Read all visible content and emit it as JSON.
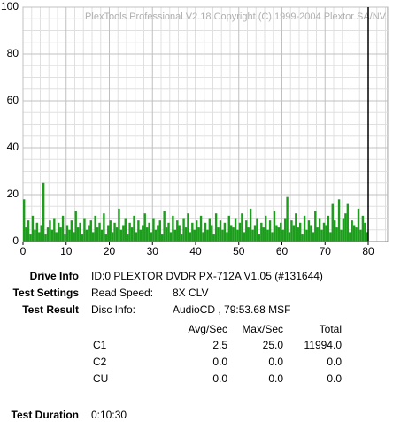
{
  "chart_data": {
    "type": "bar",
    "watermark": "PlexTools Professional V2.18 Copyright (C) 1999-2004 Plextor SA/NV",
    "xlim": [
      0,
      84.5
    ],
    "ylim": [
      0,
      100
    ],
    "xticks": [
      0,
      10,
      20,
      30,
      40,
      50,
      60,
      70,
      80
    ],
    "yticks": [
      0,
      20,
      40,
      60,
      80,
      100
    ],
    "minor_xticks": [
      2,
      4,
      6,
      8,
      12,
      14,
      16,
      18,
      22,
      24,
      26,
      28,
      32,
      34,
      36,
      38,
      42,
      44,
      46,
      48,
      52,
      54,
      56,
      58,
      62,
      64,
      66,
      68,
      72,
      74,
      76,
      78,
      82,
      84
    ],
    "minor_yticks": [
      5,
      10,
      15,
      25,
      30,
      35,
      45,
      50,
      55,
      65,
      70,
      75,
      85,
      90,
      95
    ],
    "grid": true,
    "color": "#1c9e1c",
    "end_line": 80,
    "x": [
      0,
      0.5,
      1,
      1.5,
      2,
      2.5,
      3,
      3.5,
      4,
      4.5,
      5,
      5.5,
      6,
      6.5,
      7,
      7.5,
      8,
      8.5,
      9,
      9.5,
      10,
      10.5,
      11,
      11.5,
      12,
      12.5,
      13,
      13.5,
      14,
      14.5,
      15,
      15.5,
      16,
      16.5,
      17,
      17.5,
      18,
      18.5,
      19,
      19.5,
      20,
      20.5,
      21,
      21.5,
      22,
      22.5,
      23,
      23.5,
      24,
      24.5,
      25,
      25.5,
      26,
      26.5,
      27,
      27.5,
      28,
      28.5,
      29,
      29.5,
      30,
      30.5,
      31,
      31.5,
      32,
      32.5,
      33,
      33.5,
      34,
      34.5,
      35,
      35.5,
      36,
      36.5,
      37,
      37.5,
      38,
      38.5,
      39,
      39.5,
      40,
      40.5,
      41,
      41.5,
      42,
      42.5,
      43,
      43.5,
      44,
      44.5,
      45,
      45.5,
      46,
      46.5,
      47,
      47.5,
      48,
      48.5,
      49,
      49.5,
      50,
      50.5,
      51,
      51.5,
      52,
      52.5,
      53,
      53.5,
      54,
      54.5,
      55,
      55.5,
      56,
      56.5,
      57,
      57.5,
      58,
      58.5,
      59,
      59.5,
      60,
      60.5,
      61,
      61.5,
      62,
      62.5,
      63,
      63.5,
      64,
      64.5,
      65,
      65.5,
      66,
      66.5,
      67,
      67.5,
      68,
      68.5,
      69,
      69.5,
      70,
      70.5,
      71,
      71.5,
      72,
      72.5,
      73,
      73.5,
      74,
      74.5,
      75,
      75.5,
      76,
      76.5,
      77,
      77.5,
      78,
      78.5,
      79,
      79.5
    ],
    "values": [
      18,
      6,
      9,
      3,
      11,
      5,
      8,
      4,
      7,
      25,
      3,
      6,
      9,
      5,
      10,
      4,
      8,
      6,
      11,
      3,
      7,
      5,
      9,
      4,
      13,
      6,
      8,
      3,
      10,
      5,
      7,
      9,
      4,
      11,
      6,
      8,
      5,
      12,
      3,
      7,
      9,
      4,
      8,
      6,
      14,
      5,
      7,
      10,
      3,
      8,
      6,
      11,
      4,
      9,
      5,
      7,
      12,
      6,
      8,
      4,
      10,
      5,
      7,
      9,
      3,
      13,
      6,
      8,
      4,
      11,
      5,
      9,
      7,
      3,
      10,
      6,
      12,
      4,
      8,
      5,
      9,
      6,
      11,
      4,
      8,
      5,
      10,
      7,
      3,
      12,
      6,
      9,
      5,
      8,
      4,
      11,
      7,
      6,
      10,
      5,
      8,
      12,
      4,
      9,
      6,
      14,
      5,
      7,
      10,
      3,
      8,
      6,
      11,
      5,
      9,
      4,
      13,
      7,
      6,
      8,
      5,
      10,
      19,
      4,
      9,
      7,
      12,
      6,
      8,
      3,
      11,
      5,
      9,
      7,
      4,
      13,
      6,
      10,
      5,
      8,
      7,
      11,
      4,
      16,
      9,
      6,
      18,
      5,
      10,
      12,
      16,
      4,
      9,
      7,
      6,
      14,
      5,
      11,
      8,
      4
    ]
  },
  "info": {
    "drive": {
      "label": "Drive Info",
      "value": "ID:0 PLEXTOR DVDR PX-712A V1.05 (#131644)"
    },
    "settings": {
      "label": "Test Settings",
      "key": "Read Speed:",
      "value": "8X CLV"
    },
    "result": {
      "label": "Test Result",
      "key": "Disc Info:",
      "value": "AudioCD , 79:53.68 MSF"
    },
    "table": {
      "header": [
        "Avg/Sec",
        "Max/Sec",
        "Total"
      ],
      "rows": [
        [
          "C1",
          "2.5",
          "25.0",
          "11994.0"
        ],
        [
          "C2",
          "0.0",
          "0.0",
          "0.0"
        ],
        [
          "CU",
          "0.0",
          "0.0",
          "0.0"
        ]
      ]
    },
    "duration": {
      "label": "Test Duration",
      "value": "0:10:30"
    }
  }
}
